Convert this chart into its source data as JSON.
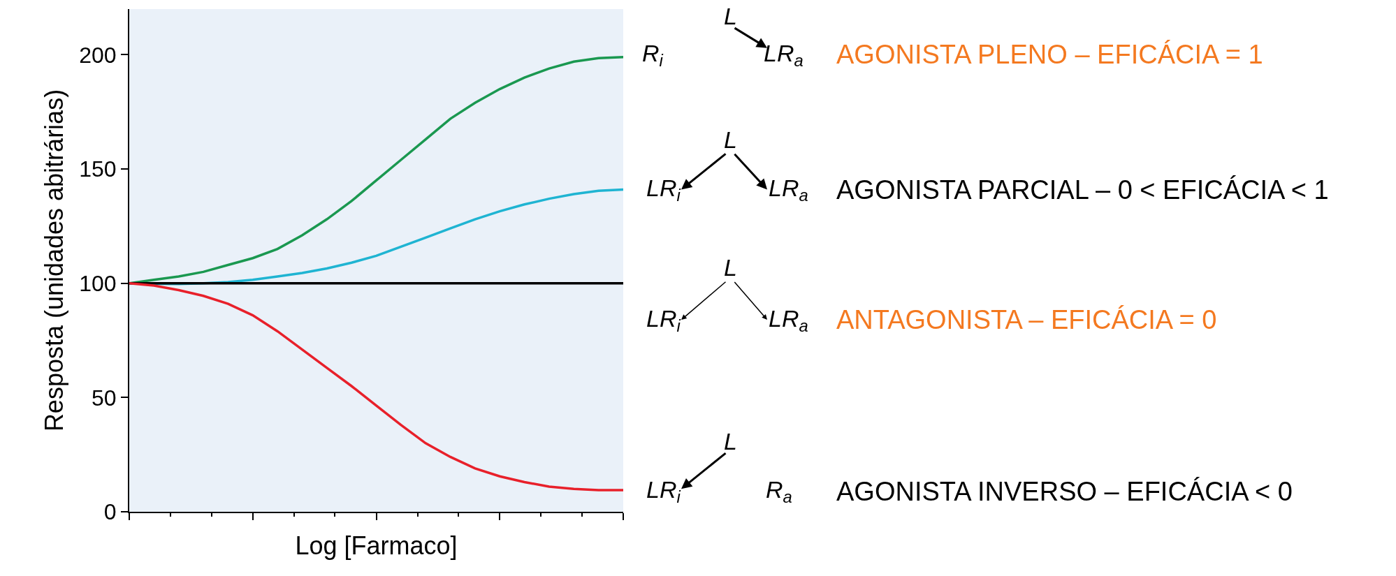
{
  "chart_data": {
    "type": "line",
    "xlabel": "Log [Farmaco]",
    "ylabel": "Resposta (unidades abitrárias)",
    "categories": [
      null,
      null,
      null,
      null,
      null,
      null,
      null,
      null,
      null,
      null,
      null,
      null,
      null,
      null,
      null,
      null,
      null,
      null,
      null,
      null,
      null
    ],
    "series": [
      {
        "color": "#1a9850",
        "values": [
          100,
          101.5,
          103,
          105,
          108,
          111,
          115,
          121,
          128,
          136,
          145,
          154,
          163,
          172,
          179,
          185,
          190,
          194,
          197,
          198.5,
          199
        ]
      },
      {
        "color": "#1fb4d2",
        "values": [
          100,
          99.8,
          99.7,
          100,
          100.5,
          101.5,
          103,
          104.5,
          106.5,
          109,
          112,
          116,
          120,
          124,
          128,
          131.5,
          134.5,
          137,
          139,
          140.5,
          141
        ]
      },
      {
        "color": "#000000",
        "values": [
          100,
          100,
          100,
          100,
          100,
          100,
          100,
          100,
          100,
          100,
          100,
          100,
          100,
          100,
          100,
          100,
          100,
          100,
          100,
          100,
          100
        ]
      },
      {
        "color": "#e8202a",
        "values": [
          100,
          99,
          97,
          94.5,
          91,
          86,
          79,
          71,
          63,
          55,
          46.5,
          38,
          30,
          24,
          19,
          15.5,
          13,
          11,
          10,
          9.5,
          9.5
        ]
      }
    ],
    "ylim": [
      0,
      220
    ],
    "yticks": [
      0,
      50,
      100,
      150,
      200
    ],
    "grid": false,
    "annotations": [
      "R$_{i}$",
      "L",
      "LR$_{a}$",
      "AGONISTA PLENO – EFICÁCIA = 1",
      "LR$_{i}$",
      "L",
      "LR$_{a}$",
      "AGONISTA PARCIAL – 0 < EFICÁCIA < 1",
      "LR$_{i}$",
      "L",
      "LR$_{a}$",
      "ANTAGONISTA – EFICÁCIA = 0",
      "LR$_{i}$",
      "L",
      "R$_{a}$",
      "AGONISTA INVERSO – EFICÁCIA < 0"
    ]
  }
}
